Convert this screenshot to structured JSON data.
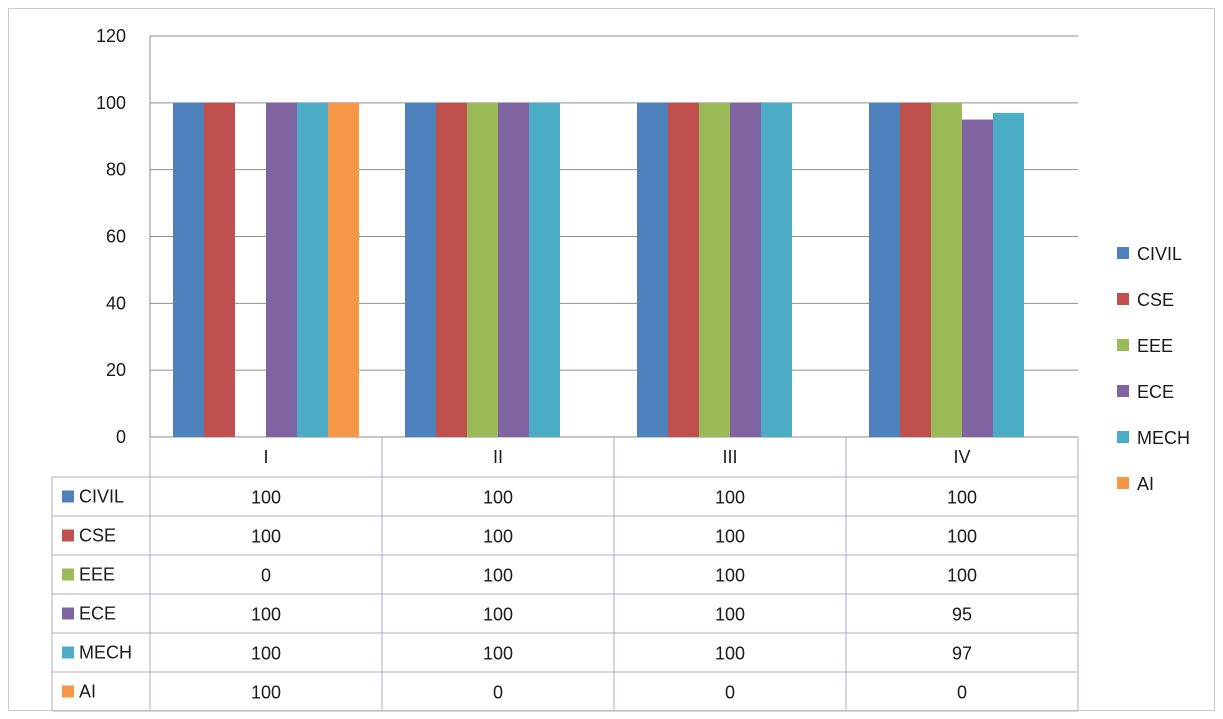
{
  "chart_data": {
    "type": "bar",
    "title": "",
    "xlabel": "",
    "ylabel": "",
    "ylim": [
      0,
      120
    ],
    "yticks": [
      0,
      20,
      40,
      60,
      80,
      100,
      120
    ],
    "grid": true,
    "legend_position": "right",
    "data_table": true,
    "categories": [
      "I",
      "II",
      "III",
      "IV"
    ],
    "series": [
      {
        "name": "CIVIL",
        "color": "#4F81BD",
        "values": [
          100,
          100,
          100,
          100
        ]
      },
      {
        "name": "CSE",
        "color": "#C0504D",
        "values": [
          100,
          100,
          100,
          100
        ]
      },
      {
        "name": "EEE",
        "color": "#9BBB59",
        "values": [
          0,
          100,
          100,
          100
        ]
      },
      {
        "name": "ECE",
        "color": "#8064A2",
        "values": [
          100,
          100,
          100,
          95
        ]
      },
      {
        "name": "MECH",
        "color": "#4BACC6",
        "values": [
          100,
          100,
          100,
          97
        ]
      },
      {
        "name": "AI",
        "color": "#F79646",
        "values": [
          100,
          0,
          0,
          0
        ]
      }
    ]
  }
}
